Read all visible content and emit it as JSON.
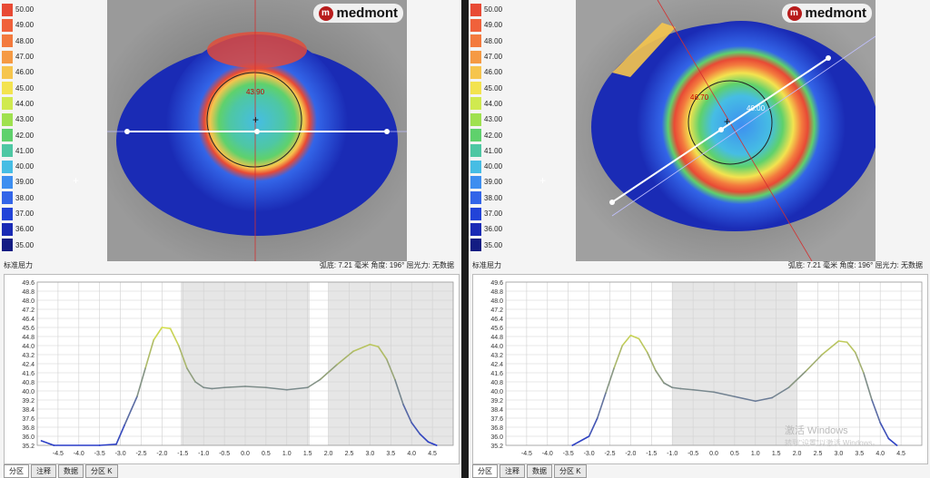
{
  "scale": {
    "title": "标准屈力",
    "labels": [
      "50.00",
      "49.00",
      "48.00",
      "47.00",
      "46.00",
      "45.00",
      "44.00",
      "43.00",
      "42.00",
      "41.00",
      "40.00",
      "39.00",
      "38.00",
      "37.00",
      "36.00",
      "35.00"
    ],
    "colors": [
      "#e84a35",
      "#f0613b",
      "#f37a3e",
      "#f59a44",
      "#f6c54d",
      "#f3e34f",
      "#d0ea4f",
      "#9fe14f",
      "#5fd16c",
      "#4ec7a3",
      "#46bde4",
      "#3d8ef0",
      "#3365e8",
      "#2243d8",
      "#1a2bb5",
      "#131c83"
    ]
  },
  "panels": [
    {
      "logo": "medmont",
      "logo_mark": "m",
      "info": "弧底: 7.21 毫米  角度: 196°  屈光力: 无数据",
      "map_labels": [
        "43.90"
      ],
      "tabs": [
        "分区",
        "注释",
        "数据",
        "分区 K"
      ],
      "watermark": "",
      "watermark_sub": ""
    },
    {
      "logo": "medmont",
      "logo_mark": "m",
      "info": "弧底: 7.21 毫米  角度: 196°  屈光力: 无数据",
      "map_labels": [
        "46.70",
        "40.00"
      ],
      "tabs": [
        "分区",
        "注释",
        "数据",
        "分区 K"
      ],
      "watermark": "激活 Windows",
      "watermark_sub": "转到\"设置\"以激活 Windows。"
    }
  ],
  "chart_data": [
    {
      "type": "line",
      "xlabel": "",
      "ylabel": "",
      "xlim": [
        -5.0,
        5.0
      ],
      "ylim": [
        35.2,
        49.6
      ],
      "xticks": [
        "-4.5",
        "-4.0",
        "-3.5",
        "-3.0",
        "-2.5",
        "-2.0",
        "-1.5",
        "-1.0",
        "-0.5",
        "0.0",
        "0.5",
        "1.0",
        "1.5",
        "2.0",
        "2.5",
        "3.0",
        "3.5",
        "4.0",
        "4.5"
      ],
      "yticks": [
        "49.6",
        "48.8",
        "48.0",
        "47.2",
        "46.4",
        "45.6",
        "44.8",
        "44.0",
        "43.2",
        "42.4",
        "41.6",
        "40.8",
        "40.0",
        "39.2",
        "38.4",
        "37.6",
        "36.8",
        "36.0",
        "35.2"
      ],
      "shaded": [
        [
          -1.55,
          1.55
        ],
        [
          2.0,
          5.0
        ]
      ],
      "x": [
        -4.9,
        -4.6,
        -3.5,
        -3.1,
        -2.9,
        -2.6,
        -2.4,
        -2.2,
        -2.0,
        -1.8,
        -1.6,
        -1.4,
        -1.2,
        -1.0,
        -0.8,
        -0.5,
        0.0,
        0.5,
        1.0,
        1.5,
        1.8,
        2.2,
        2.6,
        3.0,
        3.2,
        3.4,
        3.6,
        3.8,
        4.0,
        4.2,
        4.4,
        4.6
      ],
      "y": [
        35.6,
        35.2,
        35.2,
        35.3,
        37.0,
        39.5,
        42.0,
        44.5,
        45.6,
        45.5,
        44.0,
        42.0,
        40.8,
        40.3,
        40.2,
        40.3,
        40.4,
        40.3,
        40.1,
        40.3,
        41.0,
        42.3,
        43.5,
        44.1,
        43.9,
        42.8,
        41.0,
        38.8,
        37.2,
        36.2,
        35.5,
        35.2
      ]
    },
    {
      "type": "line",
      "xlabel": "",
      "ylabel": "",
      "xlim": [
        -5.0,
        5.0
      ],
      "ylim": [
        35.2,
        49.6
      ],
      "xticks": [
        "-4.5",
        "-4.0",
        "-3.5",
        "-3.0",
        "-2.5",
        "-2.0",
        "-1.5",
        "-1.0",
        "-0.5",
        "0.0",
        "0.5",
        "1.0",
        "1.5",
        "2.0",
        "2.5",
        "3.0",
        "3.5",
        "4.0",
        "4.5"
      ],
      "yticks": [
        "49.6",
        "48.8",
        "48.0",
        "47.2",
        "46.4",
        "45.6",
        "44.8",
        "44.0",
        "43.2",
        "42.4",
        "41.6",
        "40.8",
        "40.0",
        "39.2",
        "38.4",
        "37.6",
        "36.8",
        "36.0",
        "35.2"
      ],
      "shaded": [
        [
          -1.0,
          2.0
        ]
      ],
      "x": [
        -3.4,
        -3.0,
        -2.8,
        -2.6,
        -2.4,
        -2.2,
        -2.0,
        -1.8,
        -1.6,
        -1.4,
        -1.2,
        -1.0,
        -0.8,
        -0.5,
        0.0,
        0.5,
        1.0,
        1.4,
        1.8,
        2.2,
        2.6,
        3.0,
        3.2,
        3.4,
        3.6,
        3.8,
        4.0,
        4.2,
        4.4
      ],
      "y": [
        35.2,
        36.0,
        37.6,
        39.8,
        42.0,
        44.0,
        44.9,
        44.6,
        43.4,
        41.8,
        40.7,
        40.3,
        40.2,
        40.1,
        39.9,
        39.5,
        39.1,
        39.4,
        40.3,
        41.7,
        43.2,
        44.4,
        44.3,
        43.4,
        41.6,
        39.2,
        37.2,
        35.8,
        35.2
      ]
    }
  ]
}
